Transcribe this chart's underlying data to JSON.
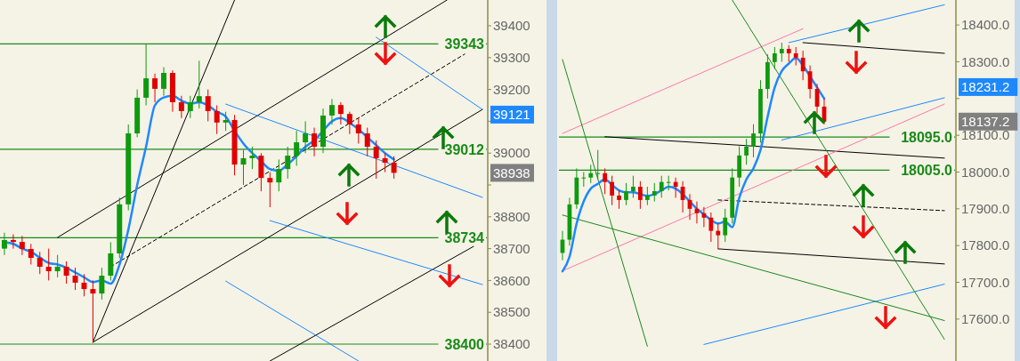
{
  "chart_data": [
    {
      "type": "candlestick",
      "categories": [
        null,
        null,
        null,
        null,
        null,
        null,
        null,
        null,
        null,
        null,
        null,
        null,
        null,
        null,
        null,
        null,
        null,
        null,
        null,
        null,
        null,
        null,
        null,
        null,
        null,
        null,
        null,
        null,
        null,
        null,
        null,
        null,
        null,
        null,
        null,
        null,
        null,
        null,
        null,
        null,
        null,
        null,
        null,
        null,
        null,
        null,
        null,
        null,
        null,
        null,
        null,
        null,
        null,
        null,
        null
      ],
      "ohlc": [
        [
          38700,
          38750,
          38680,
          38727
        ],
        [
          38727,
          38745,
          38700,
          38721
        ],
        [
          38721,
          38740,
          38680,
          38699
        ],
        [
          38699,
          38715,
          38650,
          38671
        ],
        [
          38671,
          38690,
          38620,
          38643
        ],
        [
          38643,
          38700,
          38600,
          38629
        ],
        [
          38629,
          38680,
          38610,
          38643
        ],
        [
          38643,
          38660,
          38590,
          38615
        ],
        [
          38615,
          38640,
          38570,
          38593
        ],
        [
          38593,
          38620,
          38550,
          38573
        ],
        [
          38573,
          38600,
          38406,
          38559
        ],
        [
          38559,
          38640,
          38540,
          38615
        ],
        [
          38615,
          38720,
          38600,
          38685
        ],
        [
          38685,
          38860,
          38670,
          38839
        ],
        [
          38839,
          39090,
          38820,
          39062
        ],
        [
          39062,
          39200,
          39050,
          39174
        ],
        [
          39174,
          39343,
          39150,
          39235
        ],
        [
          39235,
          39250,
          39160,
          39202
        ],
        [
          39202,
          39270,
          39180,
          39252
        ],
        [
          39252,
          39260,
          39130,
          39160
        ],
        [
          39160,
          39180,
          39110,
          39132
        ],
        [
          39132,
          39180,
          39110,
          39160
        ],
        [
          39160,
          39290,
          39140,
          39179
        ],
        [
          39179,
          39200,
          39100,
          39132
        ],
        [
          39132,
          39150,
          39060,
          39096
        ],
        [
          39096,
          39130,
          39070,
          39104
        ],
        [
          39104,
          39120,
          38930,
          38964
        ],
        [
          38964,
          39010,
          38900,
          38984
        ],
        [
          38984,
          39020,
          38950,
          38992
        ],
        [
          38992,
          39000,
          38880,
          38922
        ],
        [
          38922,
          38940,
          38830,
          38908
        ],
        [
          38908,
          38980,
          38880,
          38950
        ],
        [
          38950,
          39020,
          38920,
          38992
        ],
        [
          38992,
          39070,
          38960,
          39034
        ],
        [
          39034,
          39100,
          39000,
          39062
        ],
        [
          39062,
          39080,
          38990,
          39020
        ],
        [
          39020,
          39140,
          39000,
          39118
        ],
        [
          39118,
          39170,
          39090,
          39151
        ],
        [
          39151,
          39160,
          39090,
          39123
        ],
        [
          39123,
          39130,
          39060,
          39090
        ],
        [
          39090,
          39110,
          39030,
          39062
        ],
        [
          39062,
          39080,
          38990,
          39020
        ],
        [
          39020,
          39040,
          38920,
          38984
        ],
        [
          38984,
          39000,
          38940,
          38970
        ],
        [
          38970,
          38990,
          38920,
          38938
        ],
        null,
        null,
        null,
        null,
        null,
        null,
        null,
        null,
        null,
        null
      ],
      "series": [
        {
          "type": "line",
          "color": "#1e88ff",
          "values": [
            38720,
            38715,
            38700,
            38690,
            38672,
            38655,
            38650,
            38640,
            38625,
            38610,
            38595,
            38600,
            38590,
            38650,
            38760,
            38900,
            39020,
            39150,
            39175,
            39180,
            39165,
            39155,
            39160,
            39150,
            39130,
            39115,
            39070,
            39030,
            39000,
            38975,
            38950,
            38945,
            38965,
            38990,
            39020,
            39040,
            39070,
            39100,
            39110,
            39095,
            39075,
            39050,
            39025,
            39000,
            38980,
            null,
            null,
            null,
            null,
            null,
            null,
            null,
            null,
            null,
            null
          ]
        },
        {
          "type": "line",
          "color": "#000000",
          "values": [
            null,
            null,
            null,
            null,
            null,
            null,
            null,
            null,
            null,
            null,
            38406,
            null,
            null,
            null,
            null,
            null,
            null,
            null,
            null,
            null,
            null,
            null,
            null,
            null,
            null,
            null,
            null,
            null,
            null,
            null,
            null,
            null,
            null,
            null,
            null,
            null,
            null,
            null,
            null,
            null,
            null,
            null,
            null,
            null,
            null,
            null,
            null,
            null,
            null,
            null,
            null,
            null,
            null,
            null,
            39137
          ]
        },
        {
          "type": "line",
          "color": "#000000",
          "values": [
            null,
            null,
            null,
            null,
            null,
            null,
            38735,
            null,
            null,
            null,
            null,
            null,
            null,
            null,
            null,
            null,
            null,
            null,
            null,
            null,
            null,
            null,
            null,
            null,
            null,
            null,
            null,
            null,
            null,
            null,
            null,
            null,
            null,
            null,
            null,
            null,
            null,
            null,
            null,
            null,
            null,
            null,
            null,
            null,
            null,
            null,
            null,
            null,
            null,
            null,
            39481,
            null,
            null,
            null,
            null
          ]
        },
        {
          "type": "line",
          "color": "#000000",
          "values": [
            null,
            null,
            null,
            null,
            null,
            null,
            null,
            null,
            null,
            null,
            38406,
            null,
            null,
            null,
            null,
            null,
            null,
            null,
            null,
            null,
            null,
            null,
            null,
            null,
            null,
            null,
            39481,
            null,
            null,
            null,
            null,
            null,
            null,
            null,
            null,
            null,
            null,
            null,
            null,
            null,
            null,
            null,
            null,
            null,
            null,
            null,
            null,
            null,
            null,
            null,
            null,
            null,
            null,
            null,
            null
          ]
        },
        {
          "type": "line",
          "color": "#000000",
          "values": [
            null,
            null,
            null,
            null,
            null,
            null,
            null,
            null,
            null,
            null,
            null,
            null,
            null,
            null,
            null,
            null,
            null,
            null,
            null,
            null,
            null,
            null,
            null,
            null,
            null,
            null,
            null,
            null,
            null,
            null,
            38347,
            null,
            null,
            null,
            null,
            null,
            null,
            null,
            null,
            null,
            null,
            null,
            null,
            null,
            null,
            null,
            null,
            null,
            null,
            null,
            null,
            null,
            null,
            38707,
            null
          ]
        },
        {
          "type": "line",
          "color": "#000000",
          "line_style": "dashed",
          "values": [
            null,
            null,
            null,
            null,
            null,
            null,
            null,
            null,
            null,
            null,
            null,
            null,
            38643,
            null,
            null,
            null,
            null,
            null,
            null,
            null,
            null,
            null,
            null,
            null,
            null,
            null,
            null,
            null,
            null,
            null,
            null,
            null,
            null,
            null,
            null,
            null,
            null,
            null,
            null,
            null,
            null,
            null,
            null,
            null,
            null,
            null,
            null,
            null,
            null,
            null,
            null,
            null,
            39311,
            null,
            null
          ]
        },
        {
          "type": "line",
          "color": "#1e88ff",
          "values": [
            null,
            null,
            null,
            null,
            null,
            null,
            null,
            null,
            null,
            null,
            null,
            null,
            null,
            null,
            null,
            null,
            null,
            null,
            null,
            null,
            null,
            null,
            null,
            null,
            null,
            null,
            null,
            null,
            null,
            null,
            null,
            null,
            null,
            null,
            null,
            null,
            null,
            null,
            null,
            null,
            null,
            null,
            39364,
            null,
            null,
            null,
            null,
            null,
            null,
            null,
            null,
            null,
            null,
            null,
            39137
          ]
        },
        {
          "type": "line",
          "color": "#1e88ff",
          "values": [
            null,
            null,
            null,
            null,
            null,
            null,
            null,
            null,
            null,
            null,
            null,
            null,
            null,
            null,
            null,
            null,
            null,
            null,
            null,
            null,
            null,
            null,
            null,
            null,
            null,
            39154,
            null,
            null,
            null,
            null,
            null,
            null,
            null,
            null,
            null,
            null,
            null,
            null,
            null,
            null,
            null,
            null,
            null,
            null,
            null,
            null,
            null,
            null,
            null,
            null,
            null,
            null,
            null,
            null,
            38861
          ]
        },
        {
          "type": "line",
          "color": "#1e88ff",
          "values": [
            null,
            null,
            null,
            null,
            null,
            null,
            null,
            null,
            null,
            null,
            null,
            null,
            null,
            null,
            null,
            null,
            null,
            null,
            null,
            null,
            null,
            null,
            null,
            null,
            null,
            null,
            null,
            null,
            null,
            null,
            38788,
            null,
            null,
            null,
            null,
            null,
            null,
            null,
            null,
            null,
            null,
            null,
            null,
            null,
            null,
            null,
            null,
            null,
            null,
            null,
            null,
            null,
            null,
            null,
            38587
          ]
        },
        {
          "type": "line",
          "color": "#1e88ff",
          "values": [
            null,
            null,
            null,
            null,
            null,
            null,
            null,
            null,
            null,
            null,
            null,
            null,
            null,
            null,
            null,
            null,
            null,
            null,
            null,
            null,
            null,
            null,
            null,
            null,
            null,
            38598,
            null,
            null,
            null,
            null,
            null,
            null,
            null,
            null,
            null,
            null,
            null,
            null,
            null,
            null,
            38347,
            null,
            null,
            null,
            null,
            null,
            null,
            null,
            null,
            null,
            null,
            null,
            null,
            null,
            null
          ]
        }
      ],
      "ylim": [
        38347,
        39481
      ],
      "yticks": [
        38400,
        38500,
        38600,
        38700,
        38800,
        {
          "value": 38900,
          "label": null
        },
        39000,
        {
          "value": 39100,
          "label": null
        },
        39200,
        39300,
        39400
      ],
      "ref_lines": [
        {
          "axis": "y",
          "value": 39343,
          "label": "39343",
          "color": "#1a8a1a"
        },
        {
          "axis": "y",
          "value": 39012,
          "label": "39012",
          "color": "#1a8a1a"
        },
        {
          "axis": "y",
          "value": 38734,
          "label": "38734",
          "color": "#1a8a1a"
        },
        {
          "axis": "y",
          "value": 38400,
          "label": "38400",
          "color": "#1a8a1a"
        }
      ],
      "annotations": [
        "39121",
        "38938"
      ]
    },
    {
      "type": "candlestick",
      "categories": [
        null,
        null,
        null,
        null,
        null,
        null,
        null,
        null,
        null,
        null,
        null,
        null,
        null,
        null,
        null,
        null,
        null,
        null,
        null,
        null,
        null,
        null,
        null,
        null,
        null,
        null,
        null,
        null,
        null,
        null,
        null,
        null,
        null,
        null,
        null,
        null,
        null,
        null,
        null,
        null,
        null,
        null,
        null,
        null,
        null,
        null,
        null,
        null,
        null,
        null,
        null,
        null,
        null,
        null,
        null,
        null
      ],
      "ohlc": [
        [
          17780,
          17840,
          17760,
          17816
        ],
        [
          17816,
          17930,
          17800,
          17912
        ],
        [
          17912,
          18010,
          17900,
          17985
        ],
        [
          17985,
          18000,
          17960,
          17985
        ],
        [
          17985,
          18020,
          17970,
          17997
        ],
        [
          17997,
          18060,
          17980,
          17997
        ],
        [
          17997,
          18010,
          17940,
          17973
        ],
        [
          17973,
          17990,
          17910,
          17936
        ],
        [
          17936,
          17950,
          17900,
          17924
        ],
        [
          17924,
          17970,
          17910,
          17948
        ],
        [
          17948,
          17990,
          17930,
          17960
        ],
        [
          17960,
          17975,
          17900,
          17924
        ],
        [
          17924,
          17960,
          17910,
          17936
        ],
        [
          17936,
          17970,
          17920,
          17948
        ],
        [
          17948,
          17990,
          17930,
          17973
        ],
        [
          17973,
          17990,
          17950,
          17973
        ],
        [
          17973,
          17985,
          17930,
          17960
        ],
        [
          17960,
          17975,
          17890,
          17924
        ],
        [
          17924,
          17940,
          17870,
          17900
        ],
        [
          17900,
          17920,
          17860,
          17888
        ],
        [
          17888,
          17905,
          17850,
          17876
        ],
        [
          17876,
          17890,
          17810,
          17840
        ],
        [
          17840,
          17860,
          17791,
          17828
        ],
        [
          17828,
          17900,
          17810,
          17876
        ],
        [
          17876,
          18010,
          17860,
          17985
        ],
        [
          17985,
          18070,
          17960,
          18045
        ],
        [
          18045,
          18090,
          18020,
          18069
        ],
        [
          18069,
          18130,
          18040,
          18105
        ],
        [
          18105,
          18250,
          18080,
          18226
        ],
        [
          18226,
          18320,
          18200,
          18299
        ],
        [
          18299,
          18340,
          18280,
          18323
        ],
        [
          18323,
          18352,
          18300,
          18335
        ],
        [
          18335,
          18345,
          18300,
          18323
        ],
        [
          18323,
          18340,
          18290,
          18311
        ],
        [
          18311,
          18330,
          18250,
          18274
        ],
        [
          18274,
          18290,
          18200,
          18226
        ],
        [
          18226,
          18240,
          18160,
          18178
        ],
        [
          18178,
          18200,
          18130,
          18137.2
        ],
        null,
        null,
        null,
        null,
        null,
        null,
        null,
        null,
        null,
        null,
        null,
        null,
        null,
        null,
        null,
        null,
        null,
        null
      ],
      "series": [
        {
          "type": "line",
          "color": "#1e88ff",
          "values": [
            17730,
            17770,
            17860,
            17920,
            17955,
            17968,
            17980,
            17965,
            17950,
            17945,
            17945,
            17940,
            17935,
            17940,
            17950,
            17960,
            17955,
            17940,
            17920,
            17900,
            17885,
            17870,
            17860,
            17865,
            17850,
            17930,
            17980,
            18010,
            18060,
            18150,
            18230,
            18275,
            18295,
            18310,
            18290,
            18260,
            18230,
            18200,
            null,
            null,
            null,
            null,
            null,
            null,
            null,
            null,
            null,
            null,
            null,
            null,
            null,
            null,
            null,
            null,
            null,
            null
          ]
        },
        {
          "type": "line",
          "color": "#000000",
          "values": [
            null,
            null,
            null,
            null,
            null,
            null,
            18096,
            null,
            null,
            null,
            null,
            null,
            null,
            null,
            null,
            null,
            null,
            null,
            null,
            null,
            null,
            null,
            null,
            null,
            null,
            null,
            null,
            null,
            null,
            null,
            null,
            null,
            null,
            null,
            null,
            null,
            null,
            null,
            null,
            null,
            null,
            null,
            null,
            null,
            null,
            null,
            null,
            null,
            null,
            null,
            null,
            null,
            null,
            null,
            18038,
            null
          ]
        },
        {
          "type": "line",
          "color": "#000000",
          "values": [
            null,
            null,
            null,
            null,
            null,
            null,
            null,
            null,
            null,
            null,
            null,
            null,
            null,
            null,
            null,
            null,
            null,
            null,
            null,
            null,
            null,
            null,
            null,
            null,
            null,
            null,
            null,
            null,
            null,
            null,
            null,
            null,
            null,
            null,
            18352,
            null,
            null,
            null,
            null,
            null,
            null,
            null,
            null,
            null,
            null,
            null,
            null,
            null,
            null,
            null,
            null,
            null,
            null,
            null,
            18323,
            null
          ]
        },
        {
          "type": "line",
          "color": "#000000",
          "values": [
            null,
            null,
            null,
            null,
            null,
            null,
            null,
            null,
            null,
            null,
            null,
            null,
            null,
            null,
            null,
            null,
            null,
            null,
            null,
            null,
            null,
            null,
            17791,
            null,
            null,
            null,
            null,
            null,
            null,
            null,
            null,
            null,
            null,
            null,
            null,
            null,
            null,
            null,
            null,
            null,
            null,
            null,
            null,
            null,
            null,
            null,
            null,
            null,
            null,
            null,
            null,
            null,
            null,
            null,
            17750,
            null
          ]
        },
        {
          "type": "line",
          "color": "#000000",
          "line_style": "dashed",
          "values": [
            null,
            null,
            null,
            null,
            null,
            null,
            null,
            null,
            null,
            null,
            null,
            null,
            null,
            null,
            null,
            null,
            null,
            null,
            null,
            null,
            null,
            null,
            17924,
            null,
            null,
            null,
            null,
            null,
            null,
            null,
            null,
            null,
            null,
            null,
            null,
            null,
            null,
            null,
            null,
            null,
            null,
            null,
            null,
            null,
            null,
            null,
            null,
            null,
            null,
            null,
            null,
            null,
            null,
            null,
            17895,
            null
          ]
        },
        {
          "type": "line",
          "color": "#1e88ff",
          "values": [
            null,
            null,
            null,
            null,
            null,
            null,
            null,
            null,
            null,
            null,
            null,
            null,
            null,
            null,
            null,
            null,
            null,
            null,
            null,
            null,
            null,
            null,
            null,
            null,
            null,
            null,
            null,
            null,
            null,
            null,
            null,
            null,
            18352,
            null,
            null,
            null,
            null,
            null,
            null,
            null,
            null,
            null,
            null,
            null,
            null,
            null,
            null,
            null,
            null,
            null,
            null,
            null,
            null,
            null,
            18455,
            null
          ]
        },
        {
          "type": "line",
          "color": "#1e88ff",
          "values": [
            null,
            null,
            null,
            null,
            null,
            null,
            null,
            null,
            null,
            null,
            null,
            null,
            null,
            null,
            null,
            null,
            null,
            null,
            null,
            null,
            null,
            null,
            null,
            null,
            null,
            null,
            null,
            null,
            null,
            null,
            null,
            18087,
            null,
            null,
            null,
            null,
            null,
            null,
            null,
            null,
            null,
            null,
            null,
            null,
            null,
            null,
            null,
            null,
            null,
            null,
            null,
            null,
            null,
            null,
            18202,
            null
          ]
        },
        {
          "type": "line",
          "color": "#1e88ff",
          "values": [
            null,
            null,
            null,
            null,
            null,
            null,
            null,
            null,
            null,
            null,
            null,
            null,
            null,
            null,
            null,
            null,
            null,
            null,
            null,
            null,
            17531,
            null,
            null,
            null,
            null,
            null,
            null,
            null,
            null,
            null,
            null,
            null,
            null,
            null,
            null,
            null,
            null,
            null,
            null,
            null,
            null,
            null,
            null,
            null,
            null,
            null,
            null,
            null,
            null,
            null,
            null,
            null,
            null,
            null,
            17695,
            null
          ]
        },
        {
          "type": "line",
          "color": "#ff77aa",
          "values": [
            18105,
            null,
            null,
            null,
            null,
            null,
            null,
            null,
            null,
            null,
            null,
            null,
            null,
            null,
            null,
            null,
            null,
            null,
            null,
            null,
            null,
            null,
            null,
            null,
            null,
            null,
            null,
            null,
            null,
            null,
            null,
            null,
            null,
            null,
            18390,
            null,
            null,
            null,
            null,
            null,
            null,
            null,
            null,
            null,
            null,
            null,
            null,
            null,
            null,
            null,
            null,
            null,
            null,
            null,
            null,
            null
          ]
        },
        {
          "type": "line",
          "color": "#ff77aa",
          "values": [
            17731,
            null,
            null,
            null,
            null,
            null,
            null,
            null,
            null,
            null,
            null,
            null,
            null,
            null,
            null,
            null,
            null,
            null,
            null,
            null,
            null,
            null,
            null,
            null,
            null,
            null,
            null,
            null,
            null,
            null,
            null,
            null,
            null,
            null,
            null,
            null,
            null,
            null,
            null,
            null,
            null,
            null,
            null,
            null,
            null,
            null,
            null,
            null,
            null,
            null,
            null,
            null,
            null,
            null,
            18185,
            null
          ]
        },
        {
          "type": "line",
          "color": "#1a8a1a",
          "values": [
            18306,
            null,
            null,
            null,
            null,
            null,
            null,
            null,
            null,
            null,
            null,
            null,
            17526,
            null,
            null,
            null,
            null,
            null,
            null,
            null,
            null,
            null,
            null,
            null,
            null,
            null,
            null,
            null,
            null,
            null,
            null,
            null,
            null,
            null,
            null,
            null,
            null,
            null,
            null,
            null,
            null,
            null,
            null,
            null,
            null,
            null,
            null,
            null,
            null,
            null,
            null,
            null,
            null,
            null,
            null,
            null
          ]
        },
        {
          "type": "line",
          "color": "#1a8a1a",
          "values": [
            null,
            null,
            null,
            null,
            null,
            null,
            null,
            null,
            null,
            null,
            null,
            null,
            null,
            null,
            null,
            null,
            null,
            null,
            null,
            null,
            null,
            null,
            null,
            null,
            18468,
            null,
            null,
            null,
            null,
            null,
            null,
            null,
            null,
            null,
            null,
            null,
            null,
            null,
            null,
            null,
            null,
            null,
            null,
            null,
            null,
            null,
            null,
            null,
            null,
            null,
            null,
            null,
            null,
            null,
            17545,
            null
          ]
        },
        {
          "type": "line",
          "color": "#1a8a1a",
          "values": [
            17883,
            null,
            null,
            null,
            null,
            null,
            null,
            null,
            null,
            null,
            null,
            null,
            null,
            null,
            null,
            null,
            null,
            null,
            null,
            null,
            null,
            null,
            null,
            null,
            null,
            null,
            null,
            null,
            null,
            null,
            null,
            null,
            null,
            null,
            null,
            null,
            null,
            null,
            null,
            null,
            null,
            null,
            null,
            null,
            null,
            null,
            null,
            null,
            null,
            null,
            null,
            null,
            null,
            null,
            17596,
            null
          ]
        }
      ],
      "ylim": [
        17486,
        18468
      ],
      "yticks": [
        {
          "value": 17600,
          "label": "17600.0"
        },
        {
          "value": 17700,
          "label": "17700.0"
        },
        {
          "value": 17800,
          "label": "17800.0"
        },
        {
          "value": 17900,
          "label": "17900.0"
        },
        {
          "value": 18000,
          "label": "18000.0"
        },
        {
          "value": 18100,
          "label": "18100.0"
        },
        {
          "value": 18200,
          "label": null
        },
        {
          "value": 18300,
          "label": "18300.0"
        },
        {
          "value": 18400,
          "label": "18400.0"
        }
      ],
      "ref_lines": [
        {
          "axis": "y",
          "value": 18095,
          "label": "18095.0",
          "color": "#1a8a1a"
        },
        {
          "axis": "y",
          "value": 18005,
          "label": "18005.0",
          "color": "#1a8a1a"
        }
      ],
      "annotations": [
        "18231.2",
        "18137.2"
      ]
    }
  ]
}
